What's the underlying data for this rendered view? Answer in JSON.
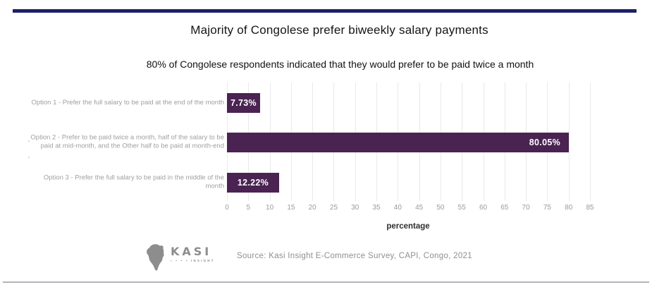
{
  "page": {
    "title": "Majority of Congolese prefer biweekly salary payments",
    "subtitle": "80% of Congolese respondents indicated that they would prefer to be paid twice a month"
  },
  "chart_data": {
    "type": "bar",
    "orientation": "horizontal",
    "categories": [
      "Option 1 - Prefer the full salary to be paid at the end of the month",
      "Option 2 - Prefer to be paid twice a month, half of the salary to be paid at mid-month, and the Other half to be paid at month-end",
      "Option 3 - Prefer the full salary to be paid in the middle of the month"
    ],
    "values": [
      7.73,
      80.05,
      12.22
    ],
    "value_labels": [
      "7.73%",
      "80.05%",
      "12.22%"
    ],
    "xlabel": "percentage",
    "xlim": [
      0,
      85
    ],
    "xticks": [
      0,
      5,
      10,
      15,
      20,
      25,
      30,
      35,
      40,
      45,
      50,
      55,
      60,
      65,
      70,
      75,
      80,
      85
    ],
    "grid": true,
    "legend": "none",
    "bar_color": "#4a2352",
    "gridline_color": "#e9e9ed",
    "label_color": "#9f9f9f"
  },
  "footer": {
    "logo": {
      "brand": "KASI",
      "dots": "▪ ▪ ▪ ▪",
      "sub": "INSIGHT"
    },
    "source": "Source: Kasi Insight E-Commerce Survey, CAPI, Congo, 2021"
  },
  "artifacts": {
    "mark1": "'",
    "mark2": "'"
  },
  "colors": {
    "top_rule": "#1b2168",
    "bottom_rule": "#b4b4bc",
    "title": "#141414",
    "bar": "#4a2352"
  }
}
